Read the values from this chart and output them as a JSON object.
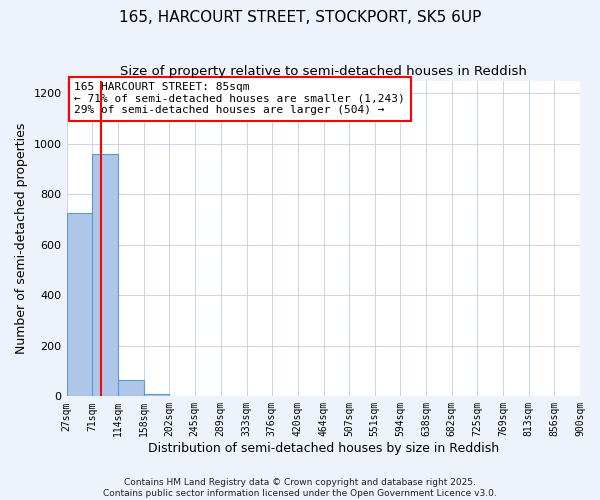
{
  "title": "165, HARCOURT STREET, STOCKPORT, SK5 6UP",
  "subtitle": "Size of property relative to semi-detached houses in Reddish",
  "xlabel": "Distribution of semi-detached houses by size in Reddish",
  "ylabel": "Number of semi-detached properties",
  "bin_edges": [
    27,
    71,
    114,
    158,
    202,
    245,
    289,
    333,
    376,
    420,
    464,
    507,
    551,
    594,
    638,
    682,
    725,
    769,
    813,
    856,
    900
  ],
  "bar_heights": [
    727,
    958,
    64,
    10,
    0,
    0,
    0,
    0,
    0,
    0,
    0,
    0,
    0,
    0,
    0,
    0,
    0,
    0,
    0,
    0
  ],
  "bar_color": "#aec6e8",
  "bar_edge_color": "#5b9bd5",
  "red_line_x": 85,
  "ylim": [
    0,
    1250
  ],
  "annotation_title": "165 HARCOURT STREET: 85sqm",
  "annotation_line1": "← 71% of semi-detached houses are smaller (1,243)",
  "annotation_line2": "29% of semi-detached houses are larger (504) →",
  "footer_line1": "Contains HM Land Registry data © Crown copyright and database right 2025.",
  "footer_line2": "Contains public sector information licensed under the Open Government Licence v3.0.",
  "bg_color": "#eef2fa",
  "plot_bg_color": "#ffffff",
  "grid_color": "#c8d4e8",
  "title_fontsize": 11,
  "ylabel_fontsize": 9,
  "xlabel_fontsize": 9
}
